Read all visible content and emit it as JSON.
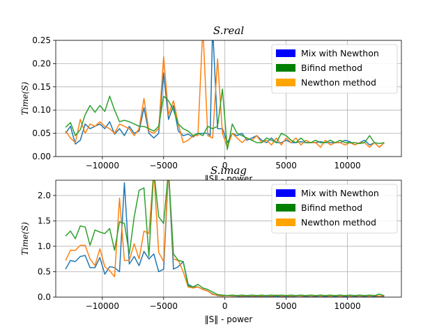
{
  "chart_data": [
    {
      "type": "line",
      "title": "S.real",
      "xlabel": "‖S‖ - power",
      "ylabel": "Time(S)",
      "xlim": [
        -13800,
        14400
      ],
      "ylim": [
        0,
        0.25
      ],
      "xticks": [
        -10000,
        -5000,
        0,
        5000,
        10000
      ],
      "xtick_labels": [
        "−10000",
        "−5000",
        "0",
        "5000",
        "10000"
      ],
      "yticks": [
        0,
        0.05,
        0.1,
        0.15,
        0.2,
        0.25
      ],
      "ytick_labels": [
        "0.00",
        "0.05",
        "0.10",
        "0.15",
        "0.20",
        "0.25"
      ],
      "grid": true,
      "legend_position": "top-right",
      "legend": [
        {
          "label": "Mix with Newthon",
          "color": "#0000ff"
        },
        {
          "label": "Bifind method",
          "color": "#008000"
        },
        {
          "label": "Newthon method",
          "color": "#ffa500"
        }
      ],
      "series": [
        {
          "color": "#1f77b4",
          "x": [
            -13000,
            -12600,
            -12200,
            -11800,
            -11400,
            -11000,
            -10600,
            -10200,
            -9800,
            -9400,
            -9000,
            -8600,
            -8200,
            -7800,
            -7400,
            -7000,
            -6600,
            -6200,
            -5800,
            -5400,
            -5000,
            -4600,
            -4200,
            -3800,
            -3400,
            -3000,
            -2600,
            -2200,
            -1800,
            -1400,
            -1200,
            -1000,
            -600,
            -200,
            200,
            600,
            1000,
            1400,
            1800,
            2200,
            2600,
            3000,
            3400,
            3800,
            4200,
            4600,
            5000,
            5400,
            5800,
            6200,
            6600,
            7000,
            7400,
            7800,
            8200,
            8600,
            9000,
            9400,
            9800,
            10200,
            10600,
            11000,
            11400,
            11800,
            12200,
            12600,
            13000
          ],
          "y": [
            0.05,
            0.065,
            0.027,
            0.035,
            0.07,
            0.06,
            0.065,
            0.07,
            0.06,
            0.075,
            0.048,
            0.06,
            0.045,
            0.065,
            0.05,
            0.055,
            0.105,
            0.05,
            0.04,
            0.05,
            0.18,
            0.08,
            0.11,
            0.055,
            0.045,
            0.048,
            0.042,
            0.05,
            0.05,
            0.05,
            0.045,
            0.28,
            0.06,
            0.06,
            0.03,
            0.05,
            0.045,
            0.05,
            0.035,
            0.04,
            0.045,
            0.035,
            0.03,
            0.04,
            0.03,
            0.03,
            0.035,
            0.03,
            0.03,
            0.032,
            0.03,
            0.03,
            0.03,
            0.032,
            0.03,
            0.03,
            0.03,
            0.03,
            0.035,
            0.032,
            0.025,
            0.03,
            0.035,
            0.025,
            0.03,
            0.02,
            0.03
          ]
        },
        {
          "color": "#ff7f0e",
          "x": [
            -13000,
            -12600,
            -12200,
            -11800,
            -11400,
            -11000,
            -10600,
            -10200,
            -9800,
            -9400,
            -9000,
            -8600,
            -8200,
            -7800,
            -7400,
            -7000,
            -6600,
            -6200,
            -5800,
            -5400,
            -5000,
            -4600,
            -4200,
            -3800,
            -3400,
            -3000,
            -2600,
            -2200,
            -1800,
            -1400,
            -1000,
            -600,
            -200,
            200,
            600,
            1000,
            1400,
            1800,
            2200,
            2600,
            3000,
            3400,
            3800,
            4200,
            4600,
            5000,
            5400,
            5800,
            6200,
            6600,
            7000,
            7400,
            7800,
            8200,
            8600,
            9000,
            9400,
            9800,
            10200,
            10600,
            11000,
            11400,
            11800,
            12200,
            12600,
            13000
          ],
          "y": [
            0.055,
            0.04,
            0.03,
            0.08,
            0.05,
            0.07,
            0.065,
            0.075,
            0.065,
            0.06,
            0.05,
            0.07,
            0.065,
            0.06,
            0.045,
            0.06,
            0.125,
            0.055,
            0.05,
            0.06,
            0.215,
            0.09,
            0.12,
            0.07,
            0.03,
            0.035,
            0.045,
            0.045,
            0.28,
            0.045,
            0.04,
            0.21,
            0.05,
            0.02,
            0.05,
            0.04,
            0.03,
            0.04,
            0.035,
            0.045,
            0.03,
            0.035,
            0.025,
            0.04,
            0.025,
            0.04,
            0.03,
            0.04,
            0.025,
            0.035,
            0.03,
            0.03,
            0.02,
            0.035,
            0.025,
            0.03,
            0.03,
            0.025,
            0.03,
            0.025,
            0.03,
            0.03,
            0.02,
            0.03,
            0.02,
            0.03
          ]
        },
        {
          "color": "#2ca02c",
          "x": [
            -13000,
            -12600,
            -12200,
            -11800,
            -11400,
            -11000,
            -10600,
            -10200,
            -9800,
            -9400,
            -9000,
            -8600,
            -8200,
            -7800,
            -7400,
            -7000,
            -6600,
            -6200,
            -5800,
            -5400,
            -5000,
            -4600,
            -4200,
            -3800,
            -3400,
            -3000,
            -2600,
            -2200,
            -1800,
            -1400,
            -1000,
            -600,
            -200,
            200,
            600,
            1000,
            1400,
            1800,
            2200,
            2600,
            3000,
            3400,
            3800,
            4200,
            4600,
            5000,
            5400,
            5800,
            6200,
            6600,
            7000,
            7400,
            7800,
            8200,
            8600,
            9000,
            9400,
            9800,
            10200,
            10600,
            11000,
            11400,
            11800,
            12200,
            12600,
            13000
          ],
          "y": [
            0.063,
            0.073,
            0.045,
            0.058,
            0.09,
            0.11,
            0.095,
            0.11,
            0.097,
            0.13,
            0.1,
            0.075,
            0.078,
            0.075,
            0.07,
            0.065,
            0.065,
            0.06,
            0.055,
            0.065,
            0.13,
            0.12,
            0.1,
            0.07,
            0.06,
            0.055,
            0.045,
            0.05,
            0.045,
            0.065,
            0.06,
            0.065,
            0.145,
            0.015,
            0.07,
            0.05,
            0.045,
            0.04,
            0.035,
            0.03,
            0.03,
            0.04,
            0.035,
            0.03,
            0.05,
            0.045,
            0.035,
            0.03,
            0.04,
            0.03,
            0.03,
            0.035,
            0.03,
            0.03,
            0.035,
            0.03,
            0.035,
            0.03,
            0.03,
            0.03,
            0.028,
            0.03,
            0.045,
            0.03,
            0.028,
            0.03
          ]
        }
      ]
    },
    {
      "type": "line",
      "title": "S.imag",
      "xlabel": "‖S‖ - power",
      "ylabel": "Time(S)",
      "xlim": [
        -13800,
        14400
      ],
      "ylim": [
        0,
        2.3
      ],
      "xticks": [
        -10000,
        -5000,
        0,
        5000,
        10000
      ],
      "xtick_labels": [
        "−10000",
        "−5000",
        "0",
        "5000",
        "10000"
      ],
      "yticks": [
        0,
        0.5,
        1.0,
        1.5,
        2.0
      ],
      "ytick_labels": [
        "0.0",
        "0.5",
        "1.0",
        "1.5",
        "2.0"
      ],
      "grid": true,
      "legend_position": "top-right",
      "legend": [
        {
          "label": "Mix with Newthon",
          "color": "#0000ff"
        },
        {
          "label": "Bifind method",
          "color": "#008000"
        },
        {
          "label": "Newthon method",
          "color": "#ffa500"
        }
      ],
      "series": [
        {
          "color": "#1f77b4",
          "x": [
            -13000,
            -12600,
            -12200,
            -11800,
            -11400,
            -11000,
            -10600,
            -10200,
            -9800,
            -9400,
            -9000,
            -8600,
            -8200,
            -7800,
            -7400,
            -7000,
            -6600,
            -6200,
            -5800,
            -5400,
            -5000,
            -4600,
            -4200,
            -3800,
            -3400,
            -3000,
            -2600,
            -2200,
            -1800,
            -1400,
            -1000,
            -600,
            -200,
            200,
            600,
            1000,
            1400,
            1800,
            2200,
            2600,
            3000,
            3400,
            3800,
            4200,
            4600,
            5000,
            5400,
            5800,
            6200,
            6600,
            7000,
            7400,
            7800,
            8200,
            8600,
            9000,
            9400,
            9800,
            10200,
            10600,
            11000,
            11400,
            11800,
            12200,
            12600,
            13000
          ],
          "y": [
            0.55,
            0.72,
            0.7,
            0.8,
            0.82,
            0.58,
            0.58,
            0.78,
            0.45,
            0.6,
            0.58,
            0.5,
            2.25,
            0.65,
            0.8,
            0.62,
            0.9,
            0.75,
            0.85,
            0.5,
            0.55,
            2.5,
            0.55,
            0.6,
            0.7,
            0.25,
            0.2,
            0.2,
            0.15,
            0.12,
            0.06,
            0.03,
            0.02,
            0.03,
            0.02,
            0.02,
            0.01,
            0.02,
            0.01,
            0.02,
            0.01,
            0.02,
            0.01,
            0.02,
            0.01,
            0.02,
            0.01,
            0.02,
            0.02,
            0.01,
            0.02,
            0.01,
            0.02,
            0.01,
            0.02,
            0.01,
            0.02,
            0.01,
            0.02,
            0.01,
            0.02,
            0.01,
            0.02,
            0.01,
            0.02,
            0.01
          ]
        },
        {
          "color": "#ff7f0e",
          "x": [
            -13000,
            -12600,
            -12200,
            -11800,
            -11400,
            -11000,
            -10600,
            -10200,
            -9800,
            -9400,
            -9000,
            -8600,
            -8200,
            -7800,
            -7400,
            -7000,
            -6600,
            -6200,
            -5800,
            -5400,
            -5000,
            -4600,
            -4200,
            -3800,
            -3400,
            -3000,
            -2600,
            -2200,
            -1800,
            -1400,
            -1000,
            -600,
            -200,
            200,
            600,
            1000,
            1400,
            1800,
            2200,
            2600,
            3000,
            3400,
            3800,
            4200,
            4600,
            5000,
            5400,
            5800,
            6200,
            6600,
            7000,
            7400,
            7800,
            8200,
            8600,
            9000,
            9400,
            9800,
            10200,
            10600,
            11000,
            11400,
            11800,
            12200,
            12600,
            13000
          ],
          "y": [
            0.72,
            0.92,
            0.92,
            1.02,
            1.02,
            0.75,
            0.62,
            0.95,
            0.6,
            0.52,
            0.4,
            1.95,
            0.72,
            0.72,
            1.05,
            0.75,
            1.3,
            1.25,
            2.5,
            0.88,
            0.7,
            2.5,
            0.75,
            0.72,
            0.5,
            0.2,
            0.18,
            0.2,
            0.15,
            0.12,
            0.05,
            0.04,
            0.02,
            0.03,
            0.02,
            0.03,
            0.02,
            0.03,
            0.02,
            0.03,
            0.02,
            0.03,
            0.02,
            0.04,
            0.02,
            0.03,
            0.02,
            0.03,
            0.02,
            0.03,
            0.02,
            0.03,
            0.02,
            0.03,
            0.02,
            0.03,
            0.02,
            0.03,
            0.02,
            0.03,
            0.02,
            0.03,
            0.02,
            0.03,
            0.02,
            0.03
          ]
        },
        {
          "color": "#2ca02c",
          "x": [
            -13000,
            -12600,
            -12200,
            -11800,
            -11400,
            -11000,
            -10600,
            -10200,
            -9800,
            -9400,
            -9000,
            -8600,
            -8200,
            -7800,
            -7400,
            -7000,
            -6600,
            -6200,
            -5800,
            -5400,
            -5000,
            -4600,
            -4200,
            -3800,
            -3400,
            -3000,
            -2600,
            -2200,
            -1800,
            -1400,
            -1000,
            -600,
            -200,
            200,
            600,
            1000,
            1400,
            1800,
            2200,
            2600,
            3000,
            3400,
            3800,
            4200,
            4600,
            5000,
            5400,
            5800,
            6200,
            6600,
            7000,
            7400,
            7800,
            8200,
            8600,
            9000,
            9400,
            9800,
            10200,
            10600,
            11000,
            11400,
            11800,
            12200,
            12600,
            13000
          ],
          "y": [
            1.2,
            1.3,
            1.15,
            1.4,
            1.38,
            1.02,
            1.32,
            1.28,
            1.25,
            1.35,
            0.92,
            1.48,
            1.45,
            0.85,
            1.58,
            2.1,
            2.15,
            0.8,
            2.5,
            1.58,
            1.45,
            2.5,
            0.85,
            0.72,
            0.7,
            0.22,
            0.2,
            0.25,
            0.18,
            0.15,
            0.1,
            0.05,
            0.04,
            0.03,
            0.04,
            0.03,
            0.04,
            0.03,
            0.04,
            0.03,
            0.04,
            0.03,
            0.04,
            0.03,
            0.04,
            0.03,
            0.04,
            0.03,
            0.04,
            0.03,
            0.04,
            0.03,
            0.04,
            0.03,
            0.04,
            0.03,
            0.04,
            0.03,
            0.04,
            0.03,
            0.04,
            0.03,
            0.04,
            0.03,
            0.06,
            0.03
          ]
        }
      ]
    }
  ]
}
